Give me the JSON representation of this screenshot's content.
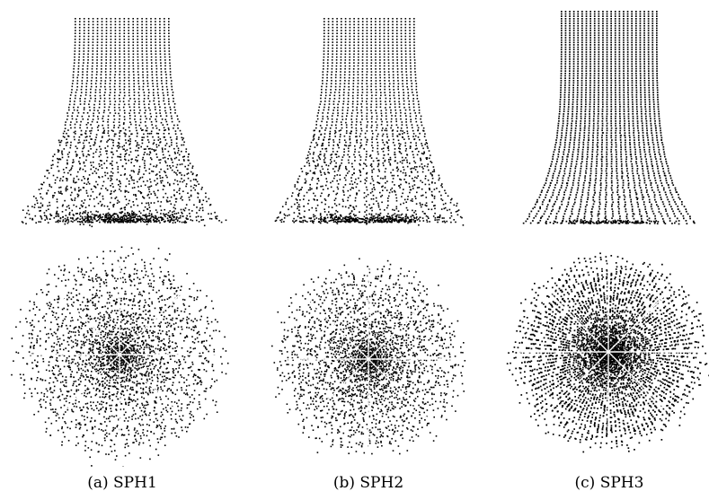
{
  "figure": {
    "captions": [
      "(a) SPH1",
      "(b) SPH2",
      "(c) SPH3"
    ],
    "ink_color": "#000000",
    "background_color": "#ffffff"
  },
  "panels": [
    {
      "id": "sph1",
      "spread": "wide",
      "scatter": "high"
    },
    {
      "id": "sph2",
      "spread": "medium",
      "scatter": "medium"
    },
    {
      "id": "sph3",
      "spread": "narrow",
      "scatter": "low"
    }
  ]
}
